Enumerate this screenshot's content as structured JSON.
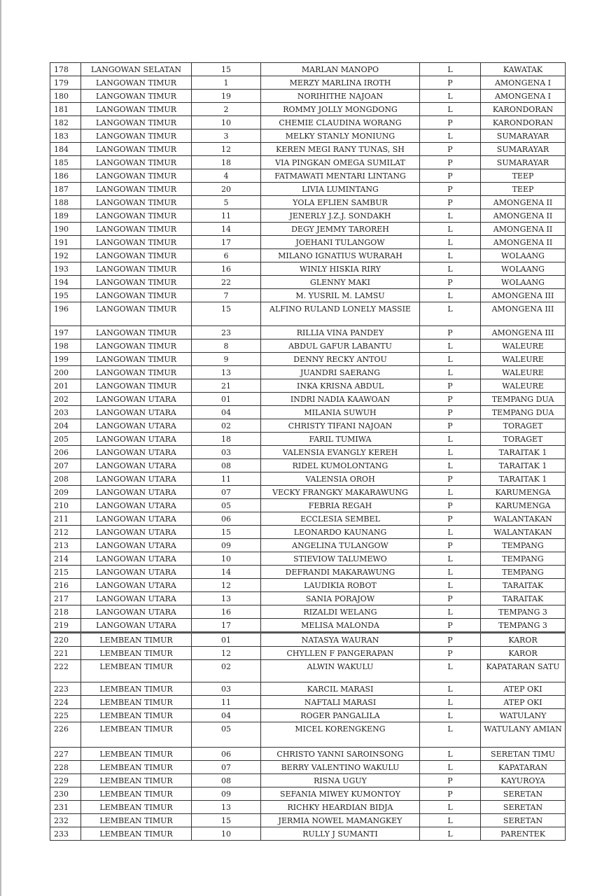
{
  "rows": [
    [
      "178",
      "LANGOWAN SELATAN",
      "15",
      "MARLAN MANOPO",
      "L",
      "KAWATAK"
    ],
    [
      "179",
      "LANGOWAN TIMUR",
      "1",
      "MERZY MARLINA IROTH",
      "P",
      "AMONGENA I"
    ],
    [
      "180",
      "LANGOWAN TIMUR",
      "19",
      "NORIHITHE NAJOAN",
      "L",
      "AMONGENA I"
    ],
    [
      "181",
      "LANGOWAN TIMUR",
      "2",
      "ROMMY JOLLY MONGDONG",
      "L",
      "KARONDORAN"
    ],
    [
      "182",
      "LANGOWAN TIMUR",
      "10",
      "CHEMIE CLAUDINA WORANG",
      "P",
      "KARONDORAN"
    ],
    [
      "183",
      "LANGOWAN TIMUR",
      "3",
      "MELKY STANLY MONIUNG",
      "L",
      "SUMARAYAR"
    ],
    [
      "184",
      "LANGOWAN TIMUR",
      "12",
      "KEREN MEGI RANY TUNAS, SH",
      "P",
      "SUMARAYAR"
    ],
    [
      "185",
      "LANGOWAN TIMUR",
      "18",
      "VIA PINGKAN OMEGA SUMILAT",
      "P",
      "SUMARAYAR"
    ],
    [
      "186",
      "LANGOWAN TIMUR",
      "4",
      "FATMAWATI MENTARI LINTANG",
      "P",
      "TEEP"
    ],
    [
      "187",
      "LANGOWAN TIMUR",
      "20",
      "LIVIA LUMINTANG",
      "P",
      "TEEP"
    ],
    [
      "188",
      "LANGOWAN TIMUR",
      "5",
      "YOLA EFLIEN SAMBUR",
      "P",
      "AMONGENA II"
    ],
    [
      "189",
      "LANGOWAN TIMUR",
      "11",
      "JENERLY J.Z.J. SONDAKH",
      "L",
      "AMONGENA II"
    ],
    [
      "190",
      "LANGOWAN TIMUR",
      "14",
      "DEGY JEMMY TAROREH",
      "L",
      "AMONGENA II"
    ],
    [
      "191",
      "LANGOWAN TIMUR",
      "17",
      "JOEHANI TULANGOW",
      "L",
      "AMONGENA II"
    ],
    [
      "192",
      "LANGOWAN TIMUR",
      "6",
      "MILANO IGNATIUS WURARAH",
      "L",
      "WOLAANG"
    ],
    [
      "193",
      "LANGOWAN TIMUR",
      "16",
      "WINLY HISKIA RIRY",
      "L",
      "WOLAANG"
    ],
    [
      "194",
      "LANGOWAN TIMUR",
      "22",
      "GLENNY MAKI",
      "P",
      "WOLAANG"
    ],
    [
      "195",
      "LANGOWAN TIMUR",
      "7",
      "M. YUSRIL M. LAMSU",
      "L",
      "AMONGENA III"
    ],
    [
      "196",
      "LANGOWAN TIMUR",
      "15",
      "ALFINO RULAND LONELY MASSIE",
      "L",
      "AMONGENA III"
    ],
    [
      "197",
      "LANGOWAN TIMUR",
      "23",
      "RILLIA VINA PANDEY",
      "P",
      "AMONGENA III"
    ],
    [
      "198",
      "LANGOWAN TIMUR",
      "8",
      "ABDUL GAFUR LABANTU",
      "L",
      "WALEURE"
    ],
    [
      "199",
      "LANGOWAN TIMUR",
      "9",
      "DENNY RECKY ANTOU",
      "L",
      "WALEURE"
    ],
    [
      "200",
      "LANGOWAN TIMUR",
      "13",
      "JUANDRI SAERANG",
      "L",
      "WALEURE"
    ],
    [
      "201",
      "LANGOWAN TIMUR",
      "21",
      "INKA KRISNA ABDUL",
      "P",
      "WALEURE"
    ],
    [
      "202",
      "LANGOWAN UTARA",
      "01",
      "INDRI NADIA KAAWOAN",
      "P",
      "TEMPANG DUA"
    ],
    [
      "203",
      "LANGOWAN UTARA",
      "04",
      "MILANIA SUWUH",
      "P",
      "TEMPANG DUA"
    ],
    [
      "204",
      "LANGOWAN UTARA",
      "02",
      "CHRISTY TIFANI NAJOAN",
      "P",
      "TORAGET"
    ],
    [
      "205",
      "LANGOWAN UTARA",
      "18",
      "FARIL TUMIWA",
      "L",
      "TORAGET"
    ],
    [
      "206",
      "LANGOWAN UTARA",
      "03",
      "VALENSIA EVANGLY KEREH",
      "L",
      "TARAITAK 1"
    ],
    [
      "207",
      "LANGOWAN UTARA",
      "08",
      "RIDEL KUMOLONTANG",
      "L",
      "TARAITAK 1"
    ],
    [
      "208",
      "LANGOWAN UTARA",
      "11",
      "VALENSIA OROH",
      "P",
      "TARAITAK 1"
    ],
    [
      "209",
      "LANGOWAN UTARA",
      "07",
      "VECKY FRANGKY MAKARAWUNG",
      "L",
      "KARUMENGA"
    ],
    [
      "210",
      "LANGOWAN UTARA",
      "05",
      "FEBRIA REGAH",
      "P",
      "KARUMENGA"
    ],
    [
      "211",
      "LANGOWAN UTARA",
      "06",
      "ECCLESIA SEMBEL",
      "P",
      "WALANTAKAN"
    ],
    [
      "212",
      "LANGOWAN UTARA",
      "15",
      "LEONARDO KAUNANG",
      "L",
      "WALANTAKAN"
    ],
    [
      "213",
      "LANGOWAN UTARA",
      "09",
      "ANGELINA TULANGOW",
      "P",
      "TEMPANG"
    ],
    [
      "214",
      "LANGOWAN UTARA",
      "10",
      "STIEVIOW TALUMEWO",
      "L",
      "TEMPANG"
    ],
    [
      "215",
      "LANGOWAN UTARA",
      "14",
      "DEFRANDI MAKARAWUNG",
      "L",
      "TEMPANG"
    ],
    [
      "216",
      "LANGOWAN UTARA",
      "12",
      "LAUDIKIA ROBOT",
      "L",
      "TARAITAK"
    ],
    [
      "217",
      "LANGOWAN UTARA",
      "13",
      "SANIA PORAJOW",
      "P",
      "TARAITAK"
    ],
    [
      "218",
      "LANGOWAN UTARA",
      "16",
      "RIZALDI WELANG",
      "L",
      "TEMPANG 3"
    ],
    [
      "219",
      "LANGOWAN UTARA",
      "17",
      "MELISA MALONDA",
      "P",
      "TEMPANG 3"
    ],
    [
      "220",
      "LEMBEAN TIMUR",
      "01",
      "NATASYA WAURAN",
      "P",
      "KAROR"
    ],
    [
      "221",
      "LEMBEAN TIMUR",
      "12",
      "CHYLLEN F PANGERAPAN",
      "P",
      "KAROR"
    ],
    [
      "222",
      "LEMBEAN TIMUR",
      "02",
      "ALWIN WAKULU",
      "L",
      "KAPATARAN SATU"
    ],
    [
      "223",
      "LEMBEAN TIMUR",
      "03",
      "KARCIL MARASI",
      "L",
      "ATEP OKI"
    ],
    [
      "224",
      "LEMBEAN TIMUR",
      "11",
      "NAFTALI MARASI",
      "L",
      "ATEP OKI"
    ],
    [
      "225",
      "LEMBEAN TIMUR",
      "04",
      "ROGER PANGALILA",
      "L",
      "WATULANY"
    ],
    [
      "226",
      "LEMBEAN TIMUR",
      "05",
      "MICEL KORENGKENG",
      "L",
      "WATULANY AMIAN"
    ],
    [
      "227",
      "LEMBEAN TIMUR",
      "06",
      "CHRISTO  YANNI SAROINSONG",
      "L",
      "SERETAN TIMU"
    ],
    [
      "228",
      "LEMBEAN TIMUR",
      "07",
      "BERRY VALENTINO WAKULU",
      "L",
      "KAPATARAN"
    ],
    [
      "229",
      "LEMBEAN TIMUR",
      "08",
      "RISNA UGUY",
      "P",
      "KAYUROYA"
    ],
    [
      "230",
      "LEMBEAN TIMUR",
      "09",
      "SEFANIA MIWEY KUMONTOY",
      "P",
      "SERETAN"
    ],
    [
      "231",
      "LEMBEAN TIMUR",
      "13",
      "RICHKY HEARDIAN BIDJA",
      "L",
      "SERETAN"
    ],
    [
      "232",
      "LEMBEAN TIMUR",
      "15",
      "JERMIA NOWEL MAMANGKEY",
      "L",
      "SERETAN"
    ],
    [
      "233",
      "LEMBEAN TIMUR",
      "10",
      "RULLY J SUMANTI",
      "L",
      "PARENTEK"
    ]
  ]
}
